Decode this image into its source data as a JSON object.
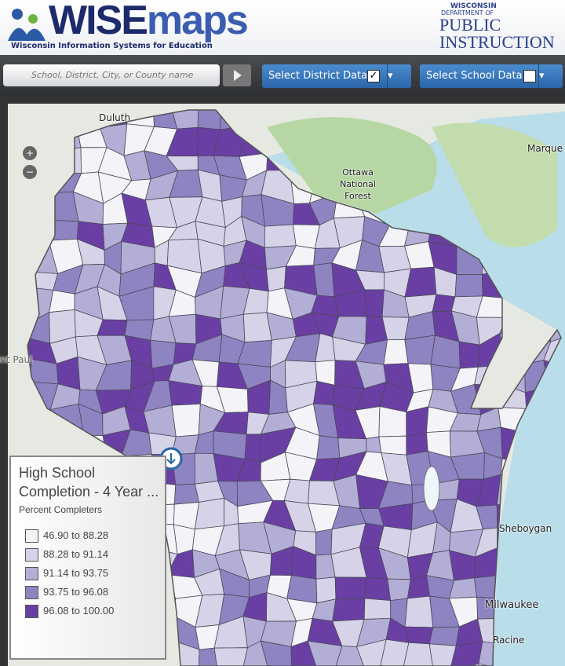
{
  "header": {
    "logo_first": "WISE",
    "logo_second": "maps",
    "logo_subtitle": "Wisconsin Information Systems for Education",
    "agency_top": "WISCONSIN",
    "agency_middle": "DEPARTMENT OF",
    "agency_bottom": "PUBLIC INSTRUCTION"
  },
  "toolbar": {
    "search_placeholder": "School, District, City, or County name",
    "district_button": "Select District Data",
    "school_button": "Select School Data"
  },
  "map": {
    "labels": [
      "Duluth",
      "Marque",
      "Ottawa National Forest",
      "Saint Paul",
      "Sheboygan",
      "Milwaukee",
      "Racine"
    ]
  },
  "legend": {
    "title": "High School Completion - 4 Year ...",
    "subtitle": "Percent Completers",
    "items": [
      {
        "label": "46.90 to 88.28",
        "color": "#f4f3f8"
      },
      {
        "label": "88.28 to 91.14",
        "color": "#d6d3e8"
      },
      {
        "label": "91.14 to 93.75",
        "color": "#b3aed6"
      },
      {
        "label": "93.75 to 96.08",
        "color": "#8f84c2"
      },
      {
        "label": "96.08 to 100.00",
        "color": "#6a3fa4"
      }
    ]
  }
}
